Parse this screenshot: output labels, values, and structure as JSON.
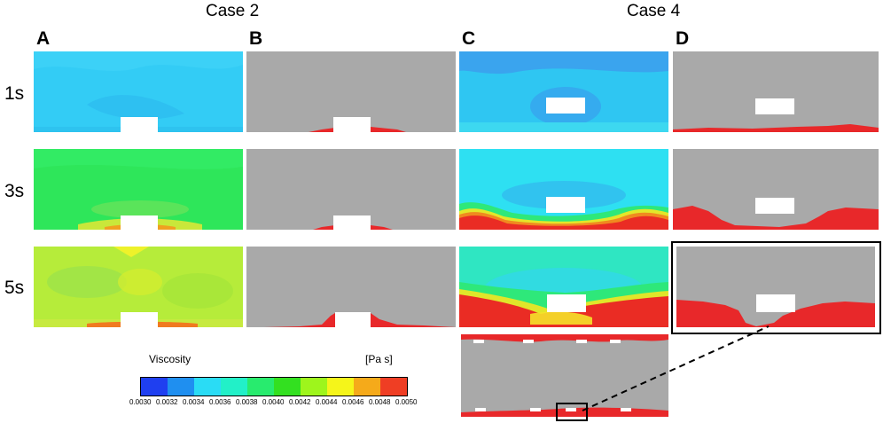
{
  "case_titles": {
    "left": "Case 2",
    "right": "Case 4"
  },
  "columns": [
    "A",
    "B",
    "C",
    "D"
  ],
  "rows": [
    "1s",
    "3s",
    "5s"
  ],
  "colorbar": {
    "title": "Viscosity",
    "unit": "[Pa s]",
    "ticks": [
      "0.0030",
      "0.0032",
      "0.0034",
      "0.0036",
      "0.0038",
      "0.0040",
      "0.0042",
      "0.0044",
      "0.0046",
      "0.0048",
      "0.0050"
    ],
    "colors": [
      "#1f3ff0",
      "#1f8ff0",
      "#2adcf5",
      "#22f0c8",
      "#28eb6e",
      "#33e020",
      "#9ef51c",
      "#f5f51a",
      "#f5aa1a",
      "#ef3e24"
    ]
  },
  "colors": {
    "fluid_gray": "#a9a9a9",
    "deposit_red": "#e8282a",
    "obstacle": "#ffffff",
    "frame": "#000000"
  }
}
